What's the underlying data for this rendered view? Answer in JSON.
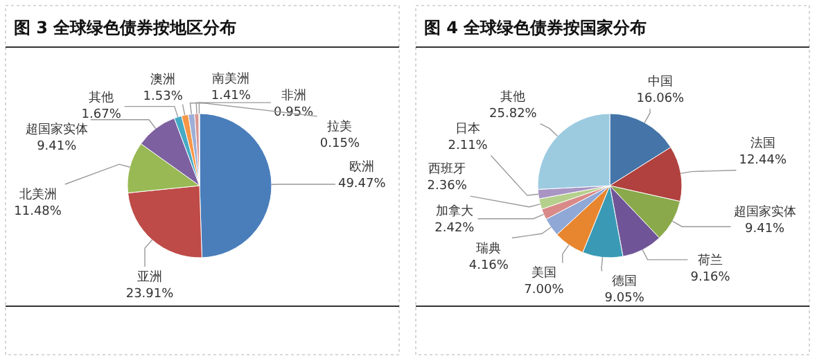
{
  "chart_data": [
    {
      "type": "pie",
      "title": "图 3 全球绿色债券按地区分布",
      "categories": [
        "欧洲",
        "亚洲",
        "北美洲",
        "超国家实体",
        "其他",
        "澳洲",
        "南美洲",
        "非洲",
        "拉美"
      ],
      "values": [
        49.47,
        23.91,
        11.48,
        9.41,
        1.67,
        1.53,
        1.41,
        0.95,
        0.15
      ],
      "colors": [
        "#4a7ebb",
        "#be4b48",
        "#98b954",
        "#7d60a0",
        "#46aac5",
        "#f79646",
        "#9dafd6",
        "#d99694",
        "#c3d69b"
      ],
      "value_labels": [
        "49.47%",
        "23.91%",
        "11.48%",
        "9.41%",
        "1.67%",
        "1.53%",
        "1.41%",
        "0.95%",
        "0.15%"
      ]
    },
    {
      "type": "pie",
      "title": "图 4 全球绿色债券按国家分布",
      "categories": [
        "中国",
        "法国",
        "超国家实体",
        "荷兰",
        "德国",
        "美国",
        "瑞典",
        "加拿大",
        "西班牙",
        "日本",
        "其他"
      ],
      "values": [
        16.06,
        12.44,
        9.41,
        9.16,
        9.05,
        7.0,
        4.16,
        2.42,
        2.36,
        2.11,
        25.82
      ],
      "colors": [
        "#4474a8",
        "#b0413e",
        "#8aa94a",
        "#6f5597",
        "#3a9ab5",
        "#e8862f",
        "#8fa8d6",
        "#d98a88",
        "#b5d08d",
        "#a895c4",
        "#9ccbe0"
      ],
      "value_labels": [
        "16.06%",
        "12.44%",
        "9.41%",
        "9.16%",
        "9.05%",
        "7.00%",
        "4.16%",
        "2.42%",
        "2.36%",
        "2.11%",
        "25.82%"
      ]
    }
  ]
}
